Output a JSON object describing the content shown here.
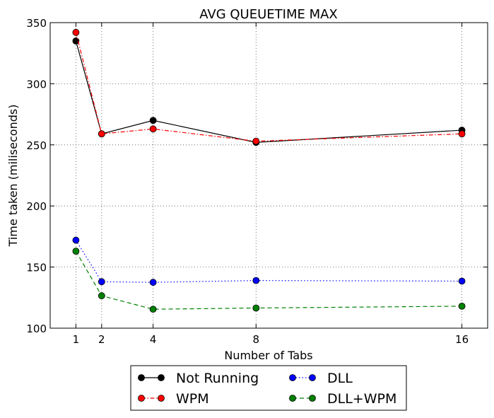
{
  "chart_data": {
    "type": "line",
    "title": "AVG QUEUETIME MAX",
    "xlabel": "Number of Tabs",
    "ylabel": "Time taken (miliseconds)",
    "x": [
      1,
      2,
      4,
      8,
      16
    ],
    "x_ticks": [
      "1",
      "2",
      "4",
      "8",
      "16"
    ],
    "xlim": [
      0,
      17
    ],
    "ylim": [
      100,
      350
    ],
    "y_ticks": [
      "100",
      "150",
      "200",
      "250",
      "300",
      "350"
    ],
    "grid": true,
    "legend_placement": "bottom-center, outside, 2 columns",
    "series": [
      {
        "name": "Not Running",
        "values": [
          335,
          259,
          270,
          252,
          262
        ],
        "color": "#000000",
        "linestyle": "solid"
      },
      {
        "name": "DLL",
        "values": [
          172,
          138,
          137.5,
          139,
          138.5
        ],
        "color": "#0000ff",
        "linestyle": "dotted"
      },
      {
        "name": "WPM",
        "values": [
          342,
          259,
          263,
          253,
          259
        ],
        "color": "#ff0000",
        "linestyle": "dashdot"
      },
      {
        "name": "DLL+WPM",
        "values": [
          163,
          126.5,
          115.5,
          116.5,
          118
        ],
        "color": "#008000",
        "linestyle": "dashed"
      }
    ]
  }
}
